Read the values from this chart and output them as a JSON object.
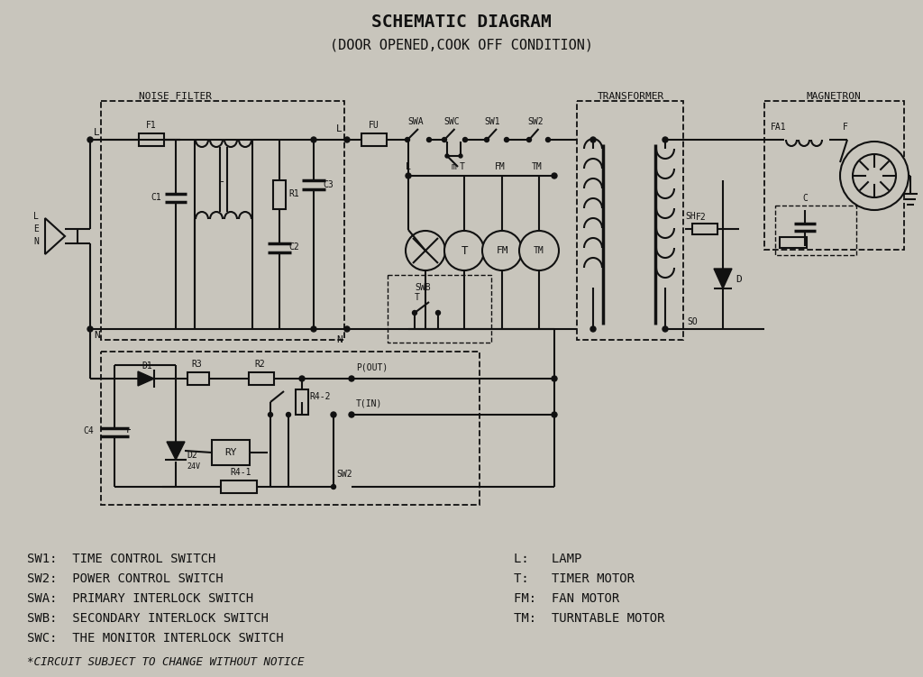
{
  "title_line1": "SCHEMATIC DIAGRAM",
  "title_line2": "(DOOR OPENED,COOK OFF CONDITION)",
  "bg_color": "#c8c5bc",
  "line_color": "#111111",
  "legend_left": [
    "SW1:  TIME CONTROL SWITCH",
    "SW2:  POWER CONTROL SWITCH",
    "SWA:  PRIMARY INTERLOCK SWITCH",
    "SWB:  SECONDARY INTERLOCK SWITCH",
    "SWC:  THE MONITOR INTERLOCK SWITCH"
  ],
  "legend_right": [
    "L:   LAMP",
    "T:   TIMER MOTOR",
    "FM:  FAN MOTOR",
    "TM:  TURNTABLE MOTOR"
  ],
  "footnote": "*CIRCUIT SUBJECT TO CHANGE WITHOUT NOTICE"
}
